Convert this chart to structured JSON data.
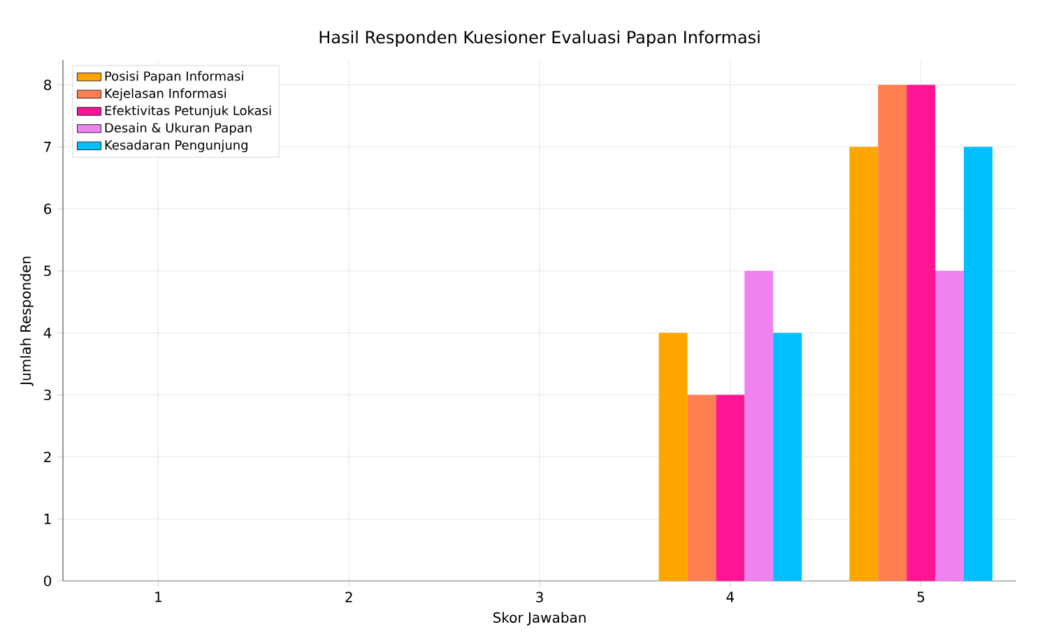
{
  "chart_data": {
    "type": "bar",
    "title": "Hasil Responden Kuesioner Evaluasi Papan Informasi",
    "xlabel": "Skor Jawaban",
    "ylabel": "Jumlah Responden",
    "categories": [
      "1",
      "2",
      "3",
      "4",
      "5"
    ],
    "series": [
      {
        "name": "Posisi Papan Informasi",
        "color": "#ffa500",
        "values": [
          0,
          0,
          0,
          4,
          7
        ]
      },
      {
        "name": "Kejelasan Informasi",
        "color": "#ff7f50",
        "values": [
          0,
          0,
          0,
          3,
          8
        ]
      },
      {
        "name": "Efektivitas Petunjuk Lokasi",
        "color": "#ff1493",
        "values": [
          0,
          0,
          0,
          3,
          8
        ]
      },
      {
        "name": "Desain & Ukuran Papan",
        "color": "#ee82ee",
        "values": [
          0,
          0,
          0,
          5,
          5
        ]
      },
      {
        "name": "Kesadaran Pengunjung",
        "color": "#00bfff",
        "values": [
          0,
          0,
          0,
          4,
          7
        ]
      }
    ],
    "ylim": [
      0,
      8.4
    ],
    "yticks": [
      0,
      1,
      2,
      3,
      4,
      5,
      6,
      7,
      8
    ],
    "grid": true,
    "legend": "top left"
  }
}
